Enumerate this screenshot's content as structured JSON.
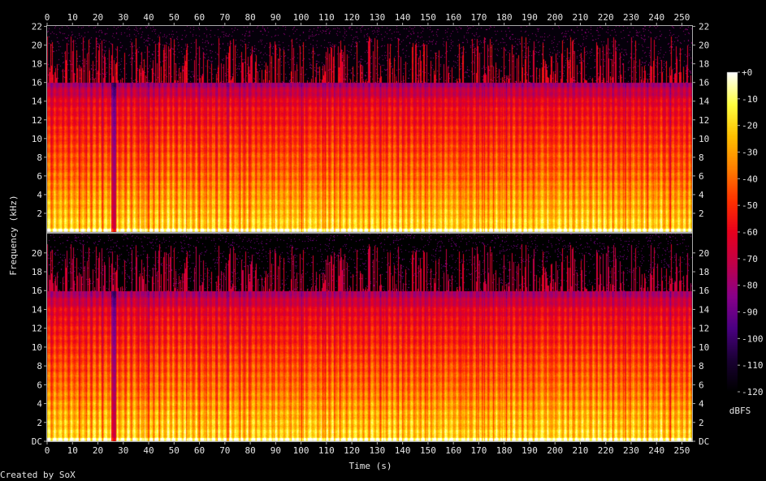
{
  "chart_data": {
    "type": "heatmap",
    "xlabel": "Time (s)",
    "ylabel": "Frequency (kHz)",
    "credit": "Created by SoX",
    "x_ticks": [
      "0",
      "10",
      "20",
      "30",
      "40",
      "50",
      "60",
      "70",
      "80",
      "90",
      "100",
      "110",
      "120",
      "130",
      "140",
      "150",
      "160",
      "170",
      "180",
      "190",
      "200",
      "210",
      "220",
      "230",
      "240",
      "250"
    ],
    "xlim": [
      0,
      254
    ],
    "ylim_khz": [
      0,
      22.05
    ],
    "y_ticks_upper": [
      "2",
      "4",
      "6",
      "8",
      "10",
      "12",
      "14",
      "16",
      "18",
      "20",
      "22"
    ],
    "y_ticks_lower": [
      "DC",
      "2",
      "4",
      "6",
      "8",
      "10",
      "12",
      "14",
      "16",
      "18",
      "20"
    ],
    "channels": 2,
    "colorbar": {
      "unit": "dBFS",
      "ticks": [
        "+0",
        "-10",
        "-20",
        "-30",
        "-40",
        "-50",
        "-60",
        "-70",
        "-80",
        "-90",
        "-100",
        "-110",
        "-120"
      ],
      "range_db": [
        -120,
        0
      ],
      "colors": [
        "#000000",
        "#1a0033",
        "#4b0082",
        "#8a008a",
        "#c0004a",
        "#e8001e",
        "#ff3300",
        "#ff8000",
        "#ffc000",
        "#ffff40",
        "#ffffff"
      ]
    },
    "lowpass_cutoff_khz": 16,
    "quiet_segments_s": [
      [
        25,
        27
      ]
    ]
  }
}
